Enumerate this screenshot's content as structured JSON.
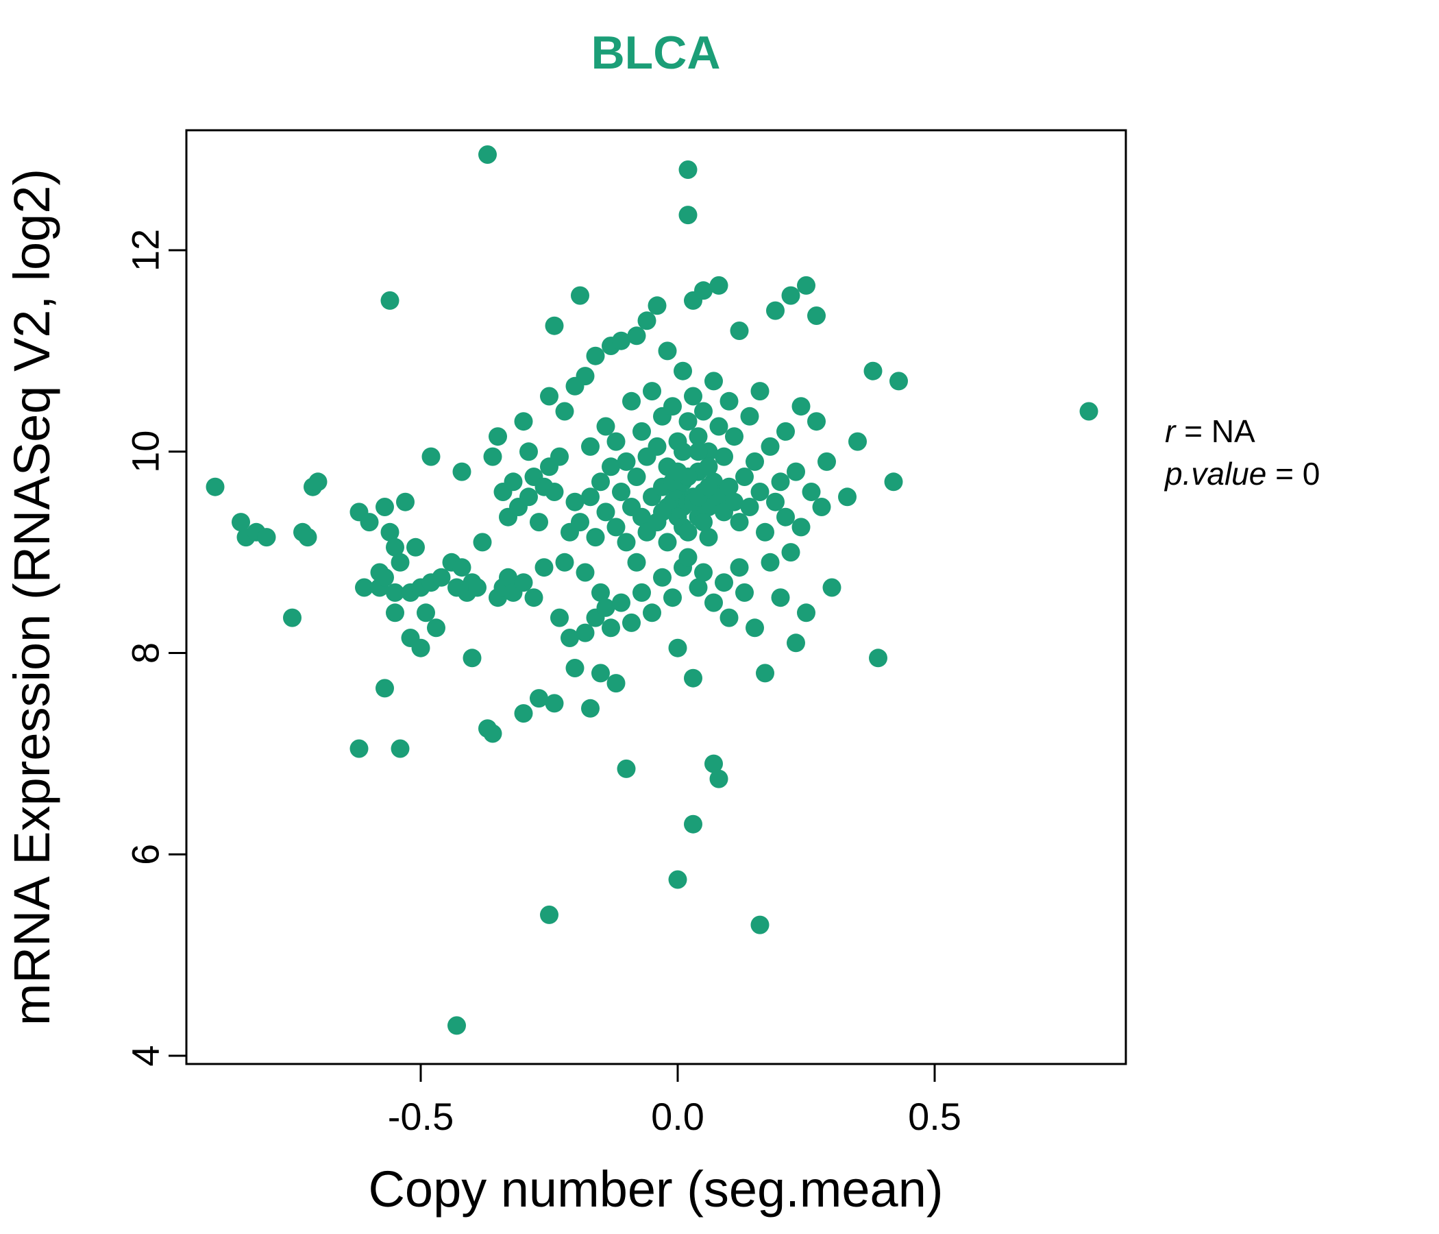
{
  "title": "BLCA",
  "annotation": {
    "r_var": "r",
    "r_rest": " = NA",
    "p_var": "p.value",
    "p_rest": " = 0"
  },
  "chart_data": {
    "type": "scatter",
    "title": "BLCA",
    "title_color": "#1b9e77",
    "point_color": "#1b9e77",
    "xlabel": "Copy number (seg.mean)",
    "ylabel": "mRNA Expression (RNASeq V2, log2)",
    "xlim": [
      -1.0,
      0.9
    ],
    "ylim": [
      4,
      13
    ],
    "x_ticks": [
      -0.5,
      0.0,
      0.5
    ],
    "x_tick_labels": [
      "-0.5",
      "0.0",
      "0.5"
    ],
    "y_ticks": [
      4,
      6,
      8,
      10,
      12
    ],
    "y_tick_labels": [
      "4",
      "6",
      "8",
      "10",
      "12"
    ],
    "grid": false,
    "legend": "none",
    "annotation_lines": [
      "r = NA",
      "p.value = 0"
    ],
    "points": [
      [
        -0.9,
        9.65
      ],
      [
        -0.85,
        9.3
      ],
      [
        -0.84,
        9.15
      ],
      [
        -0.82,
        9.2
      ],
      [
        -0.8,
        9.15
      ],
      [
        -0.75,
        8.35
      ],
      [
        -0.73,
        9.2
      ],
      [
        -0.72,
        9.15
      ],
      [
        -0.71,
        9.65
      ],
      [
        -0.7,
        9.7
      ],
      [
        -0.62,
        7.05
      ],
      [
        -0.62,
        9.4
      ],
      [
        -0.61,
        8.65
      ],
      [
        -0.6,
        9.3
      ],
      [
        -0.58,
        8.8
      ],
      [
        -0.58,
        8.65
      ],
      [
        -0.57,
        8.75
      ],
      [
        -0.57,
        9.45
      ],
      [
        -0.57,
        7.65
      ],
      [
        -0.56,
        11.5
      ],
      [
        -0.56,
        9.2
      ],
      [
        -0.55,
        8.6
      ],
      [
        -0.55,
        8.4
      ],
      [
        -0.55,
        9.05
      ],
      [
        -0.54,
        8.9
      ],
      [
        -0.54,
        7.05
      ],
      [
        -0.53,
        9.5
      ],
      [
        -0.52,
        8.15
      ],
      [
        -0.52,
        8.6
      ],
      [
        -0.51,
        9.05
      ],
      [
        -0.5,
        8.05
      ],
      [
        -0.5,
        8.65
      ],
      [
        -0.49,
        8.4
      ],
      [
        -0.48,
        9.95
      ],
      [
        -0.48,
        8.7
      ],
      [
        -0.47,
        8.25
      ],
      [
        -0.46,
        8.75
      ],
      [
        -0.44,
        8.9
      ],
      [
        -0.43,
        4.3
      ],
      [
        -0.43,
        8.65
      ],
      [
        -0.42,
        8.85
      ],
      [
        -0.42,
        9.8
      ],
      [
        -0.41,
        8.6
      ],
      [
        -0.4,
        7.95
      ],
      [
        -0.4,
        8.7
      ],
      [
        -0.39,
        8.65
      ],
      [
        -0.38,
        9.1
      ],
      [
        -0.37,
        12.95
      ],
      [
        -0.37,
        7.25
      ],
      [
        -0.36,
        7.2
      ],
      [
        -0.36,
        9.95
      ],
      [
        -0.35,
        10.15
      ],
      [
        -0.35,
        8.55
      ],
      [
        -0.34,
        9.6
      ],
      [
        -0.34,
        8.65
      ],
      [
        -0.33,
        9.35
      ],
      [
        -0.33,
        8.75
      ],
      [
        -0.32,
        8.6
      ],
      [
        -0.32,
        9.7
      ],
      [
        -0.31,
        9.45
      ],
      [
        -0.3,
        10.3
      ],
      [
        -0.3,
        8.7
      ],
      [
        -0.3,
        7.4
      ],
      [
        -0.29,
        9.55
      ],
      [
        -0.29,
        10.0
      ],
      [
        -0.28,
        9.75
      ],
      [
        -0.28,
        8.55
      ],
      [
        -0.27,
        9.3
      ],
      [
        -0.27,
        7.55
      ],
      [
        -0.26,
        9.65
      ],
      [
        -0.26,
        8.85
      ],
      [
        -0.25,
        5.4
      ],
      [
        -0.25,
        9.85
      ],
      [
        -0.25,
        10.55
      ],
      [
        -0.24,
        9.6
      ],
      [
        -0.24,
        7.5
      ],
      [
        -0.24,
        11.25
      ],
      [
        -0.23,
        9.95
      ],
      [
        -0.23,
        8.35
      ],
      [
        -0.22,
        10.4
      ],
      [
        -0.22,
        8.9
      ],
      [
        -0.21,
        9.2
      ],
      [
        -0.21,
        8.15
      ],
      [
        -0.2,
        9.5
      ],
      [
        -0.2,
        10.65
      ],
      [
        -0.2,
        7.85
      ],
      [
        -0.19,
        11.55
      ],
      [
        -0.19,
        9.3
      ],
      [
        -0.18,
        10.75
      ],
      [
        -0.18,
        8.8
      ],
      [
        -0.18,
        8.2
      ],
      [
        -0.17,
        9.55
      ],
      [
        -0.17,
        10.05
      ],
      [
        -0.17,
        7.45
      ],
      [
        -0.16,
        9.15
      ],
      [
        -0.16,
        8.35
      ],
      [
        -0.16,
        10.95
      ],
      [
        -0.15,
        9.7
      ],
      [
        -0.15,
        8.6
      ],
      [
        -0.15,
        7.8
      ],
      [
        -0.14,
        10.25
      ],
      [
        -0.14,
        9.4
      ],
      [
        -0.14,
        8.45
      ],
      [
        -0.13,
        11.05
      ],
      [
        -0.13,
        9.85
      ],
      [
        -0.13,
        8.25
      ],
      [
        -0.12,
        10.1
      ],
      [
        -0.12,
        9.25
      ],
      [
        -0.12,
        7.7
      ],
      [
        -0.11,
        11.1
      ],
      [
        -0.11,
        9.6
      ],
      [
        -0.11,
        8.5
      ],
      [
        -0.1,
        6.85
      ],
      [
        -0.1,
        9.9
      ],
      [
        -0.1,
        9.1
      ],
      [
        -0.09,
        10.5
      ],
      [
        -0.09,
        9.45
      ],
      [
        -0.09,
        8.3
      ],
      [
        -0.08,
        11.15
      ],
      [
        -0.08,
        9.75
      ],
      [
        -0.08,
        8.9
      ],
      [
        -0.07,
        10.2
      ],
      [
        -0.07,
        9.35
      ],
      [
        -0.07,
        8.6
      ],
      [
        -0.06,
        11.3
      ],
      [
        -0.06,
        9.95
      ],
      [
        -0.06,
        9.2
      ],
      [
        -0.05,
        10.6
      ],
      [
        -0.05,
        9.55
      ],
      [
        -0.05,
        8.4
      ],
      [
        -0.04,
        11.45
      ],
      [
        -0.04,
        10.05
      ],
      [
        -0.04,
        9.3
      ],
      [
        -0.03,
        10.35
      ],
      [
        -0.03,
        9.65
      ],
      [
        -0.03,
        8.75
      ],
      [
        -0.02,
        11.0
      ],
      [
        -0.02,
        9.85
      ],
      [
        -0.02,
        9.1
      ],
      [
        -0.01,
        10.45
      ],
      [
        -0.01,
        9.5
      ],
      [
        -0.01,
        8.55
      ],
      [
        0.0,
        5.75
      ],
      [
        0.0,
        9.4
      ],
      [
        0.0,
        9.6
      ],
      [
        0.0,
        10.1
      ],
      [
        0.0,
        8.05
      ],
      [
        0.01,
        9.45
      ],
      [
        0.01,
        9.7
      ],
      [
        0.01,
        10.8
      ],
      [
        0.01,
        8.85
      ],
      [
        0.02,
        12.8
      ],
      [
        0.02,
        12.35
      ],
      [
        0.02,
        9.5
      ],
      [
        0.02,
        10.3
      ],
      [
        0.02,
        8.95
      ],
      [
        0.03,
        6.3
      ],
      [
        0.03,
        9.55
      ],
      [
        0.03,
        10.55
      ],
      [
        0.03,
        11.5
      ],
      [
        0.03,
        7.75
      ],
      [
        0.04,
        9.35
      ],
      [
        0.04,
        9.8
      ],
      [
        0.04,
        8.65
      ],
      [
        0.04,
        10.15
      ],
      [
        0.05,
        9.6
      ],
      [
        0.05,
        10.4
      ],
      [
        0.05,
        8.8
      ],
      [
        0.05,
        11.6
      ],
      [
        0.06,
        9.45
      ],
      [
        0.06,
        10.0
      ],
      [
        0.06,
        9.15
      ],
      [
        0.07,
        6.9
      ],
      [
        0.07,
        9.7
      ],
      [
        0.07,
        10.7
      ],
      [
        0.07,
        8.5
      ],
      [
        0.08,
        6.75
      ],
      [
        0.08,
        9.55
      ],
      [
        0.08,
        10.25
      ],
      [
        0.08,
        11.65
      ],
      [
        0.09,
        9.4
      ],
      [
        0.09,
        9.95
      ],
      [
        0.09,
        8.7
      ],
      [
        0.1,
        9.65
      ],
      [
        0.1,
        10.5
      ],
      [
        0.1,
        8.35
      ],
      [
        -0.02,
        9.45
      ],
      [
        -0.01,
        9.7
      ],
      [
        0.0,
        9.35
      ],
      [
        0.01,
        9.25
      ],
      [
        0.02,
        9.75
      ],
      [
        0.03,
        9.5
      ],
      [
        0.04,
        9.55
      ],
      [
        0.05,
        9.3
      ],
      [
        0.06,
        9.65
      ],
      [
        0.0,
        9.8
      ],
      [
        0.01,
        10.0
      ],
      [
        -0.03,
        9.4
      ],
      [
        0.02,
        9.2
      ],
      [
        0.04,
        10.0
      ],
      [
        0.06,
        9.85
      ],
      [
        0.11,
        9.5
      ],
      [
        0.11,
        10.15
      ],
      [
        0.12,
        9.3
      ],
      [
        0.12,
        8.85
      ],
      [
        0.12,
        11.2
      ],
      [
        0.13,
        9.75
      ],
      [
        0.13,
        8.6
      ],
      [
        0.14,
        10.35
      ],
      [
        0.14,
        9.45
      ],
      [
        0.15,
        9.9
      ],
      [
        0.15,
        8.25
      ],
      [
        0.16,
        5.3
      ],
      [
        0.16,
        9.6
      ],
      [
        0.16,
        10.6
      ],
      [
        0.17,
        9.2
      ],
      [
        0.17,
        7.8
      ],
      [
        0.18,
        10.05
      ],
      [
        0.18,
        8.9
      ],
      [
        0.19,
        9.5
      ],
      [
        0.19,
        11.4
      ],
      [
        0.2,
        9.7
      ],
      [
        0.2,
        8.55
      ],
      [
        0.21,
        10.2
      ],
      [
        0.21,
        9.35
      ],
      [
        0.22,
        11.55
      ],
      [
        0.22,
        9.0
      ],
      [
        0.23,
        9.8
      ],
      [
        0.23,
        8.1
      ],
      [
        0.24,
        10.45
      ],
      [
        0.24,
        9.25
      ],
      [
        0.25,
        11.65
      ],
      [
        0.25,
        8.4
      ],
      [
        0.26,
        9.6
      ],
      [
        0.27,
        10.3
      ],
      [
        0.27,
        11.35
      ],
      [
        0.28,
        9.45
      ],
      [
        0.29,
        9.9
      ],
      [
        0.3,
        8.65
      ],
      [
        0.33,
        9.55
      ],
      [
        0.35,
        10.1
      ],
      [
        0.38,
        10.8
      ],
      [
        0.39,
        7.95
      ],
      [
        0.42,
        9.7
      ],
      [
        0.43,
        10.7
      ],
      [
        0.8,
        10.4
      ]
    ]
  }
}
